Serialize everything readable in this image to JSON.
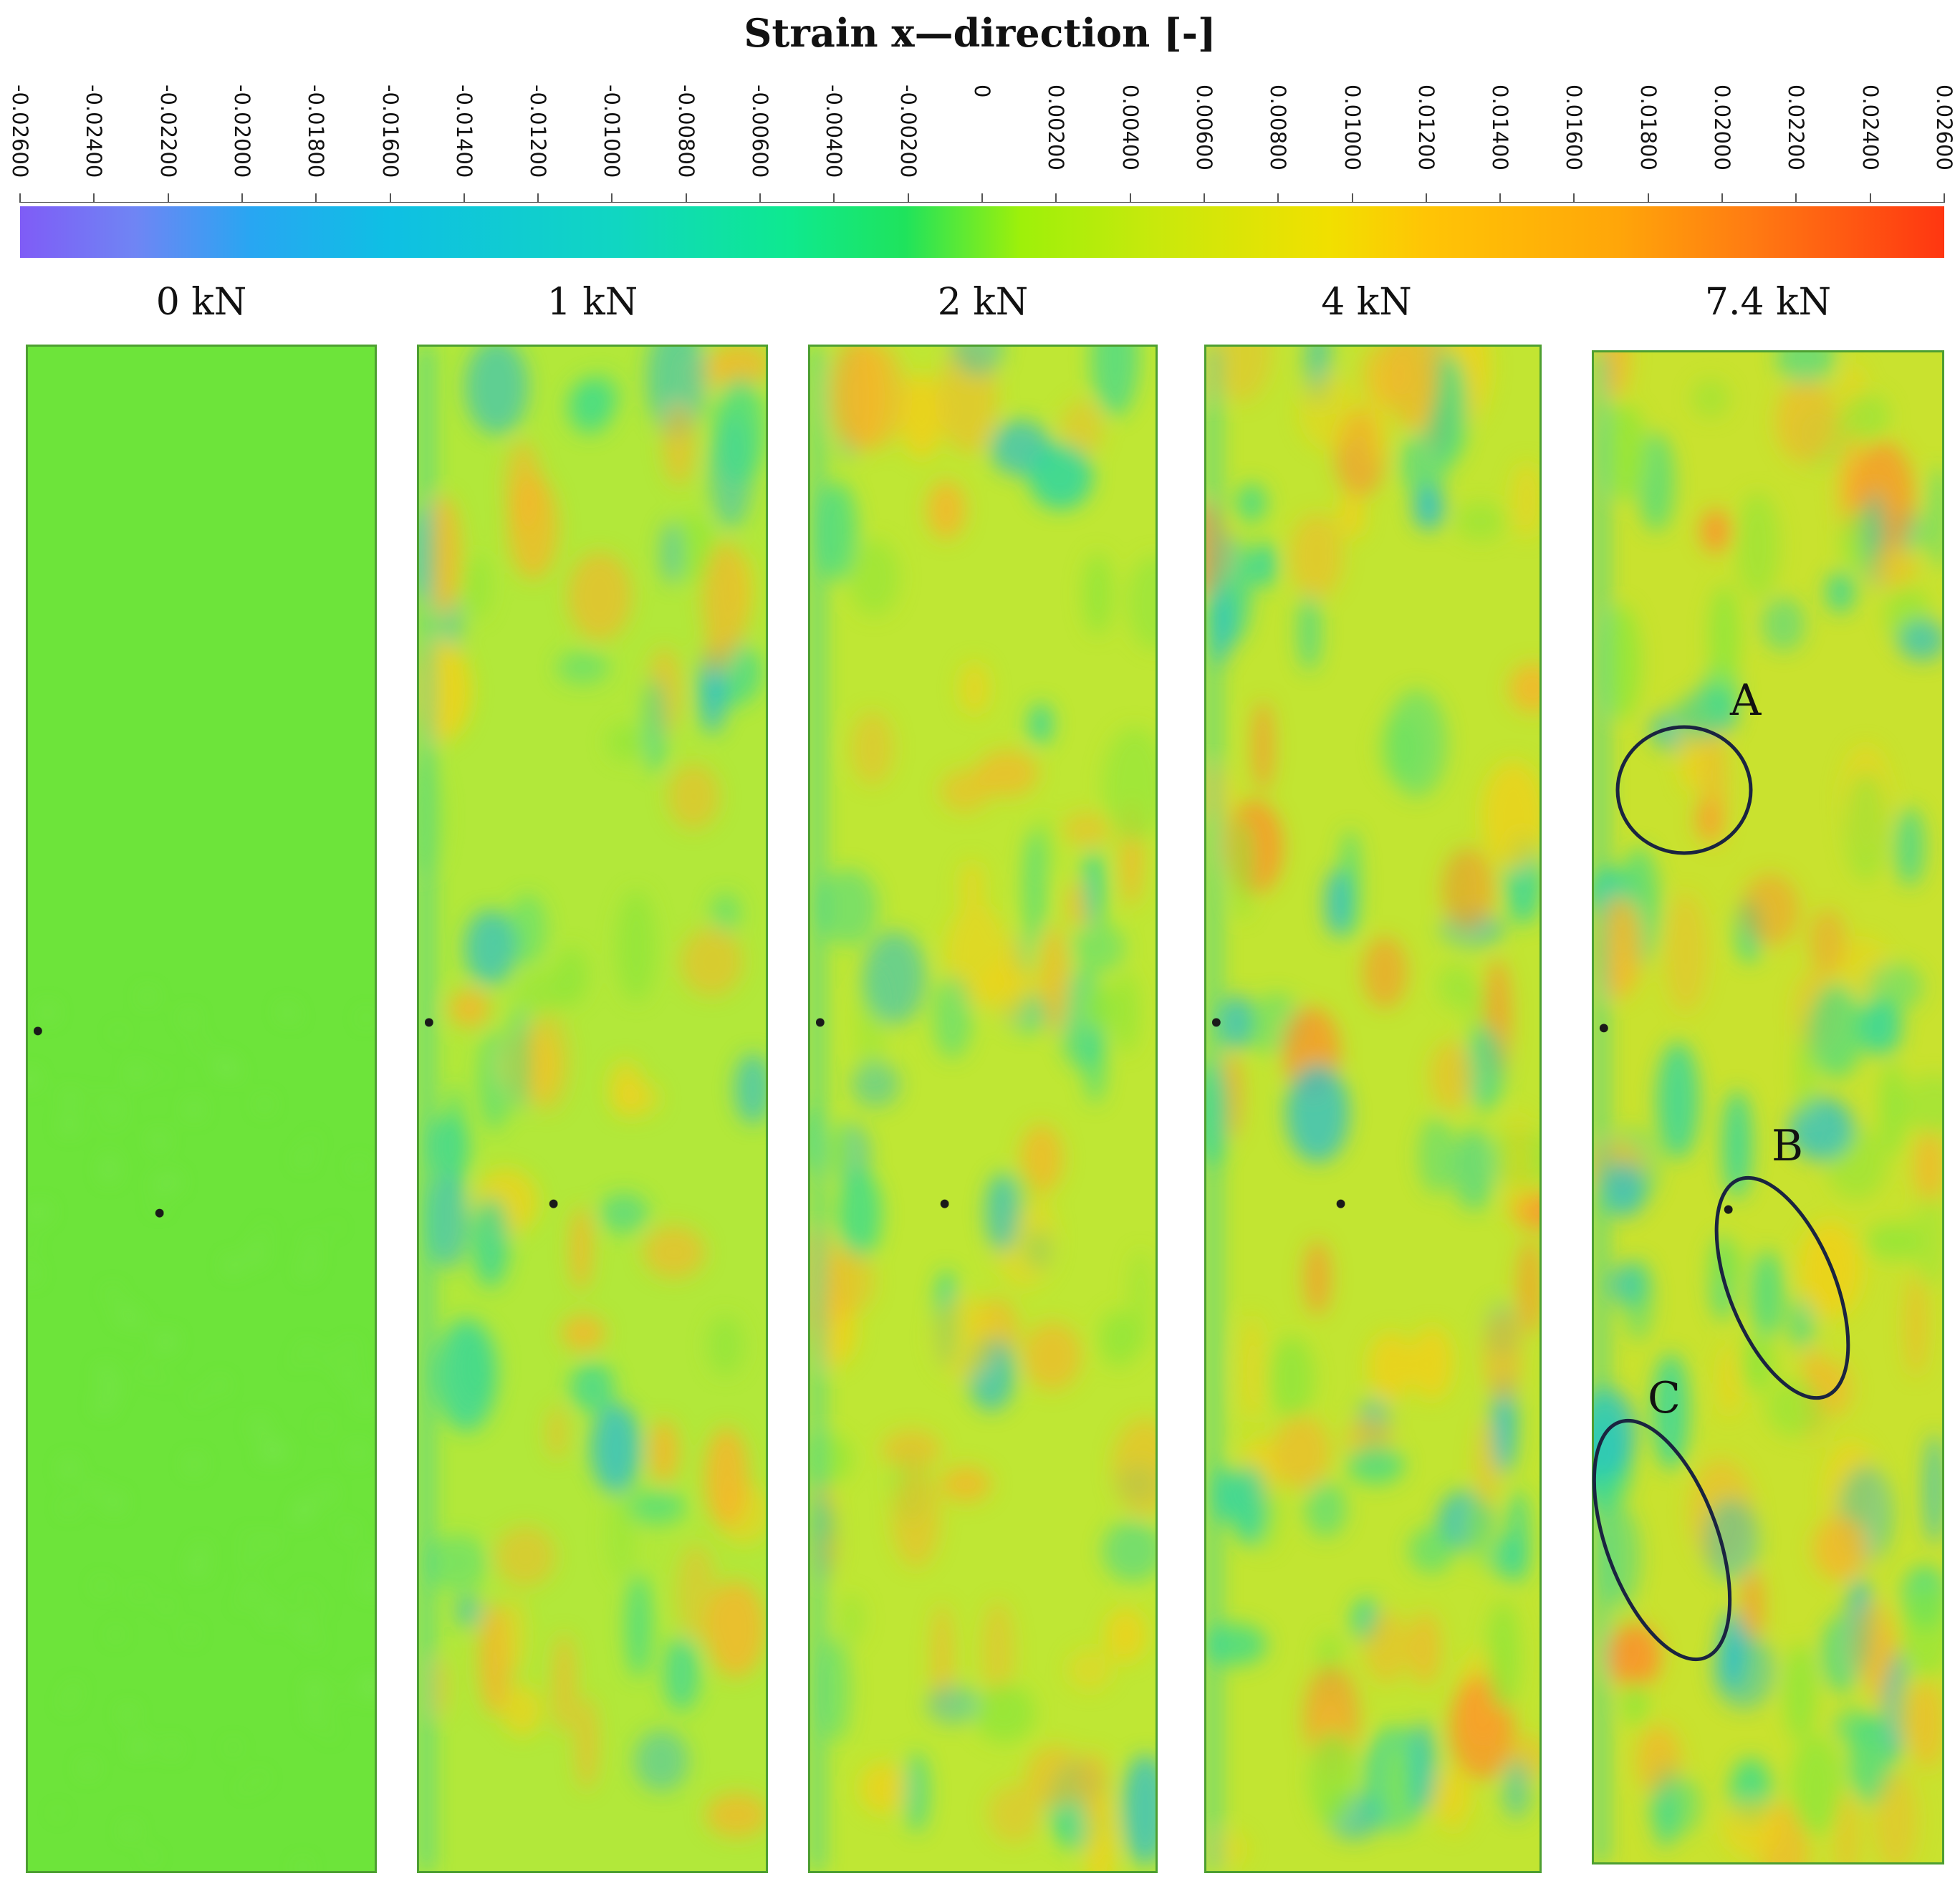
{
  "title": "Strain x—direction [-]",
  "scale": {
    "ticks": [
      "-0.02600",
      "-0.02400",
      "-0.02200",
      "-0.02000",
      "-0.01800",
      "-0.01600",
      "-0.01400",
      "-0.01200",
      "-0.01000",
      "-0.00800",
      "-0.00600",
      "-0.00400",
      "-0.00200",
      "0",
      "0.00200",
      "0.00400",
      "0.00600",
      "0.00800",
      "0.01000",
      "0.01200",
      "0.01400",
      "0.01600",
      "0.01800",
      "0.02000",
      "0.02200",
      "0.02400",
      "0.02600"
    ],
    "min": -0.026,
    "max": 0.026,
    "colors": [
      "#7f5cf6",
      "#28a6f2",
      "#10d6c2",
      "#0ee98f",
      "#9ef00a",
      "#f1e000",
      "#ffa609",
      "#ff3611"
    ]
  },
  "panels": [
    {
      "label": "0 kN",
      "base_color": "#6de43a"
    },
    {
      "label": "1 kN",
      "base_color": "#b2e83a"
    },
    {
      "label": "2 kN",
      "base_color": "#bfe734"
    },
    {
      "label": "4 kN",
      "base_color": "#c2e532"
    },
    {
      "label": "7.4 kN",
      "base_color": "#c9e22f"
    }
  ],
  "annotations": [
    "A",
    "B",
    "C"
  ]
}
